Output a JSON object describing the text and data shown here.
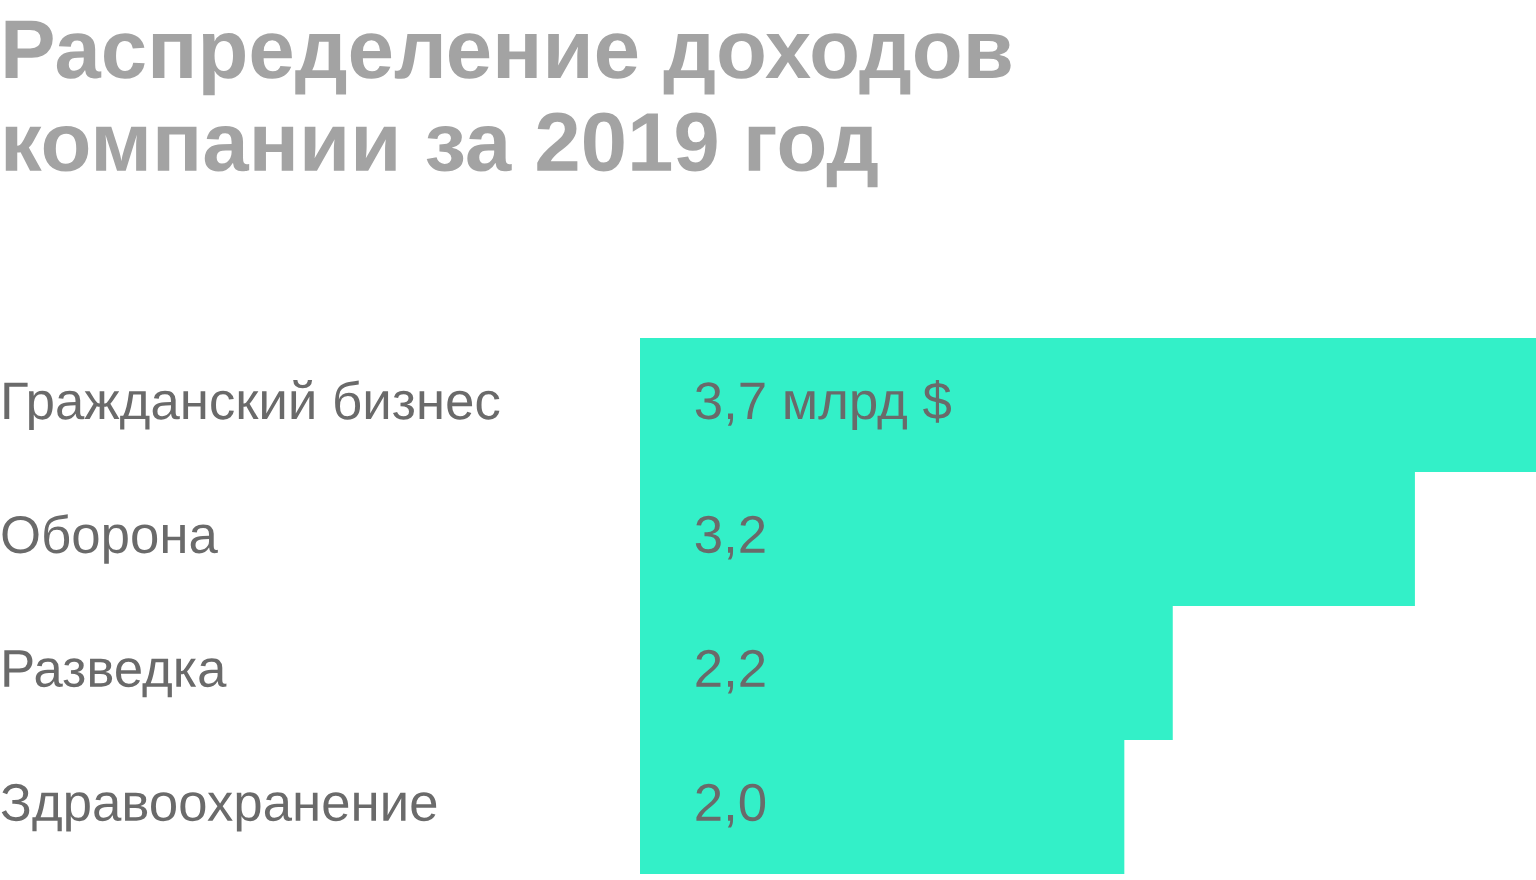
{
  "chart_data": {
    "type": "bar",
    "orientation": "horizontal",
    "title": "Распределение доходов\nкомпании за 2019 год",
    "categories": [
      "Гражданский бизнес",
      "Оборона",
      "Разведка",
      "Здравоохранение"
    ],
    "values": [
      3.7,
      3.2,
      2.2,
      2.0
    ],
    "value_labels": [
      "3,7 млрд $",
      "3,2",
      "2,2",
      "2,0"
    ],
    "color": "#33f0c8",
    "xlim": [
      0,
      3.7
    ],
    "tick_labels": false
  }
}
